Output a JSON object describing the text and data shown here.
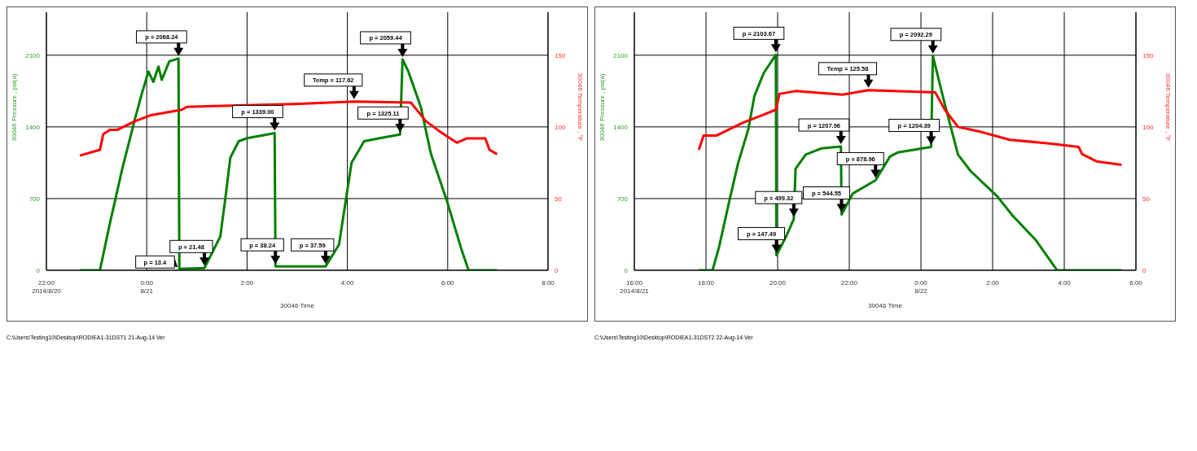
{
  "chart_data": [
    {
      "type": "line",
      "xlabel": "30046 Time",
      "ylabel": "30046 Pressure , psi(a)",
      "y2label": "30046 Temperature , °F",
      "grid": true,
      "xlim": [
        "2014-08-20T22:00",
        "2014-08-21T08:00"
      ],
      "xticks": [
        {
          "value": "2014-08-20T22:00",
          "label": "22:00\n2014/8/20"
        },
        {
          "value": "2014-08-21T00:00",
          "label": "0:00\n8/21"
        },
        {
          "value": "2014-08-21T02:00",
          "label": "2:00"
        },
        {
          "value": "2014-08-21T04:00",
          "label": "4:00"
        },
        {
          "value": "2014-08-21T06:00",
          "label": "6:00"
        },
        {
          "value": "2014-08-21T08:00",
          "label": "8:00"
        }
      ],
      "ylim": [
        0,
        2520
      ],
      "yticks": [
        0,
        700,
        1400,
        2100
      ],
      "y2lim": [
        0,
        180
      ],
      "y2ticks": [
        0,
        50,
        100,
        150
      ],
      "series": [
        {
          "color": "#008000",
          "x": [
            "2014-08-20T22:40",
            "2014-08-20T23:04",
            "2014-08-20T23:16",
            "2014-08-20T23:31",
            "2014-08-20T23:46",
            "2014-08-20T23:54",
            "2014-08-21T00:02",
            "2014-08-21T00:08",
            "2014-08-21T00:14",
            "2014-08-21T00:18",
            "2014-08-21T00:27",
            "2014-08-21T00:38",
            "2014-08-21T00:39",
            "2014-08-21T01:09",
            "2014-08-21T01:28",
            "2014-08-21T01:34",
            "2014-08-21T01:40",
            "2014-08-21T01:50",
            "2014-08-21T02:00",
            "2014-08-21T02:20",
            "2014-08-21T02:33",
            "2014-08-21T02:34",
            "2014-08-21T03:34",
            "2014-08-21T03:50",
            "2014-08-21T03:59",
            "2014-08-21T04:05",
            "2014-08-21T04:20",
            "2014-08-21T04:45",
            "2014-08-21T05:03",
            "2014-08-21T05:06",
            "2014-08-21T05:13",
            "2014-08-21T05:28",
            "2014-08-21T05:40",
            "2014-08-21T05:59",
            "2014-08-21T06:17",
            "2014-08-21T06:25",
            "2014-08-21T06:59"
          ],
          "values": [
            0,
            0,
            460,
            1000,
            1480,
            1720,
            1940,
            1840,
            1990,
            1860,
            2040,
            2068.24,
            13.4,
            21.48,
            330,
            700,
            1100,
            1260,
            1290,
            1320,
            1339,
            38.24,
            37.59,
            250,
            730,
            1050,
            1260,
            1300,
            1325.11,
            2059.44,
            1940,
            1590,
            1135,
            680,
            190,
            0,
            0
          ]
        },
        {
          "color": "#ff0000",
          "axis": "y2",
          "x": [
            "2014-08-20T22:40",
            "2014-08-20T23:04",
            "2014-08-20T23:08",
            "2014-08-20T23:16",
            "2014-08-20T23:25",
            "2014-08-20T23:46",
            "2014-08-21T00:04",
            "2014-08-21T00:42",
            "2014-08-21T00:48",
            "2014-08-21T02:57",
            "2014-08-21T04:08",
            "2014-08-21T05:16",
            "2014-08-21T05:34",
            "2014-08-21T05:50",
            "2014-08-21T06:11",
            "2014-08-21T06:23",
            "2014-08-21T06:45",
            "2014-08-21T06:50",
            "2014-08-21T06:59"
          ],
          "values": [
            80,
            84,
            95,
            98,
            98,
            104,
            108,
            112,
            114,
            116,
            117.62,
            117,
            104,
            97,
            89,
            92,
            92,
            84,
            81
          ]
        }
      ],
      "annotations": [
        {
          "text": "p = 2068.24",
          "x": "2014-08-21T00:38",
          "y": 2068.24
        },
        {
          "text": "p = 13.4",
          "x": "2014-08-21T00:39",
          "y": 13.4
        },
        {
          "text": "p = 21.48",
          "x": "2014-08-21T01:09",
          "y": 21.48
        },
        {
          "text": "p = 1339.00",
          "x": "2014-08-21T02:33",
          "y": 1339
        },
        {
          "text": "p = 38.24",
          "x": "2014-08-21T02:34",
          "y": 38.24
        },
        {
          "text": "p = 37.59",
          "x": "2014-08-21T03:34",
          "y": 37.59
        },
        "Temp = 117.62",
        {
          "text": "p = 1325.11",
          "x": "2014-08-21T05:03",
          "y": 1325.11
        },
        {
          "text": "p = 2059.44",
          "x": "2014-08-21T05:06",
          "y": 2059.44
        },
        "C:\\Users\\Testing10\\Desktop\\RODIEA1-31DST1 21-Aug-14 Ver"
      ]
    },
    {
      "type": "line",
      "xlabel": "30046 Time",
      "ylabel": "30046 Pressure , psi(a)",
      "y2label": "30046 Temperature , °F",
      "grid": true,
      "xlim": [
        "2014-08-21T16:00",
        "2014-08-22T06:00"
      ],
      "xticks": [
        {
          "value": "2014-08-21T16:00",
          "label": "16:00\n2014/8/21"
        },
        {
          "value": "2014-08-21T18:00",
          "label": "18:00"
        },
        {
          "value": "2014-08-21T20:00",
          "label": "20:00"
        },
        {
          "value": "2014-08-21T22:00",
          "label": "22:00"
        },
        {
          "value": "2014-08-22T00:00",
          "label": "0:00\n8/22"
        },
        {
          "value": "2014-08-22T02:00",
          "label": "2:00"
        },
        {
          "value": "2014-08-22T04:00",
          "label": "4:00"
        },
        {
          "value": "2014-08-22T06:00",
          "label": "6:00"
        }
      ],
      "ylim": [
        0,
        2520
      ],
      "yticks": [
        0,
        700,
        1400,
        2100
      ],
      "y2lim": [
        0,
        180
      ],
      "y2ticks": [
        0,
        50,
        100,
        150
      ],
      "series": [
        {
          "color": "#008000",
          "x": [
            "2014-08-21T17:48",
            "2014-08-21T18:11",
            "2014-08-21T18:22",
            "2014-08-21T18:40",
            "2014-08-21T18:54",
            "2014-08-21T19:11",
            "2014-08-21T19:21",
            "2014-08-21T19:37",
            "2014-08-21T19:57",
            "2014-08-21T19:58",
            "2014-08-21T20:15",
            "2014-08-21T20:27",
            "2014-08-21T20:30",
            "2014-08-21T20:47",
            "2014-08-21T21:13",
            "2014-08-21T21:46",
            "2014-08-21T21:47",
            "2014-08-21T22:06",
            "2014-08-21T22:44",
            "2014-08-21T23:08",
            "2014-08-21T23:21",
            "2014-08-22T00:17",
            "2014-08-22T00:20",
            "2014-08-22T00:40",
            "2014-08-22T01:02",
            "2014-08-22T01:23",
            "2014-08-22T02:08",
            "2014-08-22T02:34",
            "2014-08-22T03:13",
            "2014-08-22T03:48",
            "2014-08-22T05:36"
          ],
          "values": [
            0,
            0,
            230,
            700,
            1050,
            1380,
            1700,
            1930,
            2103.67,
            147.49,
            340,
            499.32,
            990,
            1130,
            1190,
            1207.96,
            544.55,
            750,
            878.96,
            1110,
            1150,
            1204.39,
            2092.29,
            1620,
            1130,
            970,
            720,
            530,
            290,
            0,
            0
          ]
        },
        {
          "color": "#ff0000",
          "axis": "y2",
          "x": [
            "2014-08-21T17:48",
            "2014-08-21T17:56",
            "2014-08-21T18:18",
            "2014-08-21T19:02",
            "2014-08-21T19:33",
            "2014-08-21T19:57",
            "2014-08-21T20:03",
            "2014-08-21T20:30",
            "2014-08-21T21:49",
            "2014-08-21T22:32",
            "2014-08-22T00:24",
            "2014-08-22T00:40",
            "2014-08-22T01:02",
            "2014-08-22T01:36",
            "2014-08-22T02:29",
            "2014-08-22T03:35",
            "2014-08-22T04:24",
            "2014-08-22T04:30",
            "2014-08-22T04:54",
            "2014-08-22T05:36"
          ],
          "values": [
            84,
            94,
            94,
            103,
            108,
            112,
            123,
            125,
            122.5,
            125.58,
            124,
            112,
            100,
            97,
            91,
            88.5,
            86,
            81,
            76,
            73.5
          ]
        }
      ],
      "annotations": [
        {
          "text": "p = 2103.67",
          "x": "2014-08-21T19:57",
          "y": 2103.67
        },
        {
          "text": "p = 147.49",
          "x": "2014-08-21T19:58",
          "y": 147.49
        },
        {
          "text": "p = 499.32",
          "x": "2014-08-21T20:27",
          "y": 499.32
        },
        {
          "text": "p = 1207.96",
          "x": "2014-08-21T21:46",
          "y": 1207.96
        },
        {
          "text": "p = 544.55",
          "x": "2014-08-21T21:47",
          "y": 544.55
        },
        "Temp = 125.58",
        {
          "text": "p = 878.96",
          "x": "2014-08-21T22:44",
          "y": 878.96
        },
        {
          "text": "p = 1204.39",
          "x": "2014-08-22T00:17",
          "y": 1204.39
        },
        {
          "text": "p = 2092.29",
          "x": "2014-08-22T00:20",
          "y": 2092.29
        },
        "C:\\Users\\Testing10\\Desktop\\RODIEA1-31DST2 22-Aug-14 Ver"
      ]
    }
  ]
}
